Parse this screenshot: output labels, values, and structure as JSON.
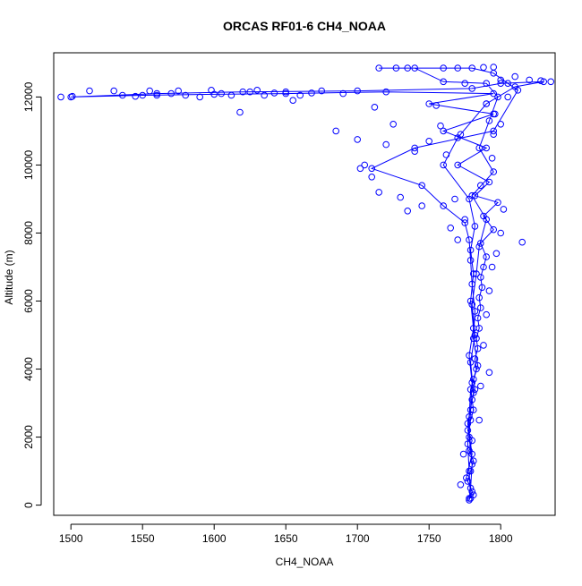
{
  "chart_data": {
    "type": "scatter",
    "title": "ORCAS RF01-6 CH4_NOAA",
    "xlabel": "CH4_NOAA",
    "ylabel": "Altitude (m)",
    "xlim": [
      1488,
      1838
    ],
    "ylim": [
      -300,
      13300
    ],
    "x_ticks": [
      1500,
      1550,
      1600,
      1650,
      1700,
      1750,
      1800
    ],
    "y_ticks": [
      0,
      2000,
      4000,
      6000,
      8000,
      10000,
      12000
    ],
    "grid": false,
    "legend": "none",
    "series": [
      {
        "color": "#0000ff",
        "marker": "open-circle",
        "line": true,
        "points": [
          [
            1778,
            150
          ],
          [
            1780,
            400
          ],
          [
            1777,
            700
          ],
          [
            1779,
            1000
          ],
          [
            1781,
            1300
          ],
          [
            1778,
            1600
          ],
          [
            1780,
            1900
          ],
          [
            1777,
            2200
          ],
          [
            1779,
            2500
          ],
          [
            1781,
            2800
          ],
          [
            1780,
            3100
          ],
          [
            1782,
            3400
          ],
          [
            1781,
            3700
          ],
          [
            1783,
            4000
          ],
          [
            1782,
            4300
          ],
          [
            1784,
            4600
          ],
          [
            1783,
            4900
          ],
          [
            1785,
            5200
          ],
          [
            1784,
            5500
          ],
          [
            1786,
            5800
          ],
          [
            1785,
            6100
          ],
          [
            1787,
            6400
          ],
          [
            1786,
            6700
          ],
          [
            1788,
            7000
          ],
          [
            1790,
            7300
          ],
          [
            1786,
            7700
          ],
          [
            1795,
            8100
          ],
          [
            1788,
            8500
          ],
          [
            1798,
            8900
          ],
          [
            1782,
            9100
          ],
          [
            1792,
            9500
          ],
          [
            1770,
            10000
          ],
          [
            1790,
            10500
          ],
          [
            1760,
            11000
          ],
          [
            1795,
            11500
          ],
          [
            1750,
            11800
          ],
          [
            1795,
            12100
          ],
          [
            1720,
            12150
          ],
          [
            1650,
            12100
          ],
          [
            1600,
            12080
          ],
          [
            1550,
            12050
          ],
          [
            1500,
            12000
          ],
          [
            1560,
            12100
          ],
          [
            1620,
            12150
          ],
          [
            1700,
            12180
          ],
          [
            1780,
            12250
          ],
          [
            1800,
            12400
          ],
          [
            1830,
            12450
          ],
          [
            1810,
            12300
          ],
          [
            1790,
            11800
          ],
          [
            1770,
            10800
          ],
          [
            1760,
            10000
          ],
          [
            1778,
            9000
          ],
          [
            1782,
            8200
          ],
          [
            1779,
            7500
          ],
          [
            1781,
            6800
          ],
          [
            1779,
            6000
          ],
          [
            1781,
            5200
          ],
          [
            1778,
            4400
          ],
          [
            1780,
            3600
          ],
          [
            1779,
            2800
          ],
          [
            1778,
            2000
          ],
          [
            1780,
            1200
          ],
          [
            1779,
            500
          ],
          [
            1778,
            200
          ],
          [
            1781,
            300
          ],
          [
            1776,
            800
          ],
          [
            1780,
            1500
          ],
          [
            1777,
            2400
          ],
          [
            1781,
            3300
          ],
          [
            1779,
            4200
          ],
          [
            1782,
            5000
          ],
          [
            1780,
            5900
          ],
          [
            1783,
            6800
          ],
          [
            1785,
            7600
          ],
          [
            1790,
            8400
          ],
          [
            1780,
            9100
          ],
          [
            1795,
            9800
          ],
          [
            1785,
            10500
          ],
          [
            1792,
            11300
          ],
          [
            1798,
            12000
          ],
          [
            1790,
            12400
          ],
          [
            1760,
            12450
          ],
          [
            1740,
            12850
          ],
          [
            1715,
            12850
          ],
          [
            1780,
            12850
          ],
          [
            1795,
            12700
          ],
          [
            1805,
            12400
          ],
          [
            1812,
            12200
          ],
          [
            1795,
            11000
          ],
          [
            1740,
            10500
          ],
          [
            1710,
            9900
          ],
          [
            1745,
            9400
          ],
          [
            1760,
            8800
          ],
          [
            1775,
            8300
          ],
          [
            1778,
            7800
          ],
          [
            1779,
            7200
          ],
          [
            1780,
            6500
          ],
          [
            1782,
            5700
          ],
          [
            1781,
            4900
          ],
          [
            1784,
            4100
          ],
          [
            1779,
            3400
          ],
          [
            1778,
            2600
          ],
          [
            1777,
            1800
          ],
          [
            1778,
            1000
          ],
          [
            1779,
            200
          ]
        ],
        "extra_points": [
          [
            1493,
            12000
          ],
          [
            1501,
            12020
          ],
          [
            1513,
            12180
          ],
          [
            1530,
            12180
          ],
          [
            1536,
            12050
          ],
          [
            1545,
            12020
          ],
          [
            1555,
            12180
          ],
          [
            1560,
            12050
          ],
          [
            1570,
            12100
          ],
          [
            1575,
            12180
          ],
          [
            1580,
            12050
          ],
          [
            1590,
            12000
          ],
          [
            1598,
            12200
          ],
          [
            1605,
            12100
          ],
          [
            1612,
            12050
          ],
          [
            1618,
            11550
          ],
          [
            1625,
            12150
          ],
          [
            1630,
            12200
          ],
          [
            1635,
            12050
          ],
          [
            1642,
            12120
          ],
          [
            1650,
            12150
          ],
          [
            1655,
            11900
          ],
          [
            1660,
            12050
          ],
          [
            1668,
            12120
          ],
          [
            1675,
            12180
          ],
          [
            1685,
            11000
          ],
          [
            1690,
            12100
          ],
          [
            1700,
            10750
          ],
          [
            1702,
            9900
          ],
          [
            1705,
            10000
          ],
          [
            1710,
            9650
          ],
          [
            1712,
            11700
          ],
          [
            1715,
            9200
          ],
          [
            1720,
            10600
          ],
          [
            1725,
            11200
          ],
          [
            1730,
            9050
          ],
          [
            1735,
            8650
          ],
          [
            1740,
            10400
          ],
          [
            1745,
            8800
          ],
          [
            1750,
            10700
          ],
          [
            1755,
            11750
          ],
          [
            1758,
            11150
          ],
          [
            1762,
            10300
          ],
          [
            1765,
            8150
          ],
          [
            1768,
            9000
          ],
          [
            1770,
            7800
          ],
          [
            1772,
            10900
          ],
          [
            1775,
            8400
          ],
          [
            1790,
            11800
          ],
          [
            1795,
            10900
          ],
          [
            1800,
            11200
          ],
          [
            1805,
            12000
          ],
          [
            1810,
            12600
          ],
          [
            1815,
            7730
          ],
          [
            1820,
            12500
          ],
          [
            1828,
            12480
          ],
          [
            1835,
            12450
          ],
          [
            1727,
            12850
          ],
          [
            1735,
            12850
          ],
          [
            1760,
            12850
          ],
          [
            1770,
            12850
          ],
          [
            1788,
            12870
          ],
          [
            1795,
            12880
          ],
          [
            1800,
            12500
          ],
          [
            1772,
            600
          ],
          [
            1774,
            1500
          ],
          [
            1785,
            2500
          ],
          [
            1786,
            3500
          ],
          [
            1792,
            3900
          ],
          [
            1788,
            4700
          ],
          [
            1790,
            5600
          ],
          [
            1792,
            6300
          ],
          [
            1794,
            7000
          ],
          [
            1797,
            7400
          ],
          [
            1800,
            8000
          ],
          [
            1802,
            8700
          ],
          [
            1786,
            9400
          ],
          [
            1794,
            10200
          ],
          [
            1796,
            11500
          ],
          [
            1775,
            12400
          ]
        ]
      }
    ]
  }
}
